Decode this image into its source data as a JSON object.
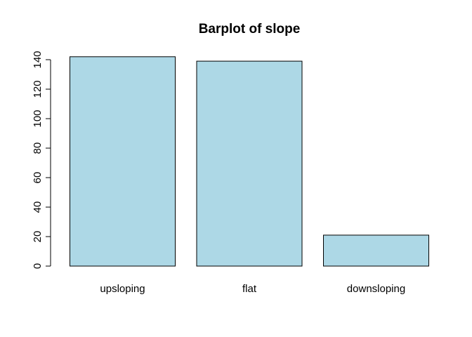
{
  "chart_data": {
    "type": "bar",
    "title": "Barplot of slope",
    "xlabel": "",
    "ylabel": "",
    "categories": [
      "upsloping",
      "flat",
      "downsloping"
    ],
    "values": [
      142,
      139,
      21
    ],
    "ylim": [
      0,
      140
    ],
    "y_ticks": [
      "0",
      "20",
      "40",
      "60",
      "80",
      "100",
      "120",
      "140"
    ],
    "grid": false,
    "legend": "none",
    "bar_color": "#ADD8E6",
    "border_color": "#000000"
  }
}
